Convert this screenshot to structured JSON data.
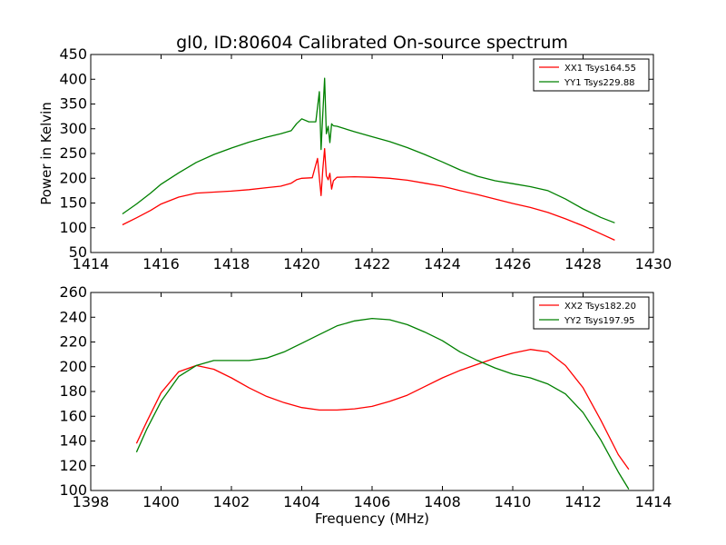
{
  "chart_data": [
    {
      "type": "line",
      "title": "gl0, ID:80604 Calibrated On-source spectrum",
      "xlabel": "",
      "ylabel": "Power in Kelvin",
      "xlim": [
        1414,
        1430
      ],
      "ylim": [
        50,
        450
      ],
      "xticks": [
        "1414",
        "1416",
        "1418",
        "1420",
        "1422",
        "1424",
        "1426",
        "1428",
        "1430"
      ],
      "yticks": [
        "50",
        "100",
        "150",
        "200",
        "250",
        "300",
        "350",
        "400",
        "450"
      ],
      "grid": false,
      "legend_position": "top-right",
      "series": [
        {
          "name": "XX1 Tsys164.55",
          "color": "#ff0000",
          "x": [
            1414.9,
            1415.3,
            1415.7,
            1416.0,
            1416.5,
            1417.0,
            1417.5,
            1418.0,
            1418.5,
            1419.0,
            1419.4,
            1419.7,
            1419.85,
            1420.0,
            1420.3,
            1420.45,
            1420.55,
            1420.6,
            1420.65,
            1420.7,
            1420.75,
            1420.8,
            1420.85,
            1420.9,
            1421.0,
            1421.5,
            1422.0,
            1422.5,
            1423.0,
            1423.5,
            1424.0,
            1424.5,
            1425.0,
            1425.5,
            1426.0,
            1426.5,
            1427.0,
            1427.5,
            1428.0,
            1428.5,
            1428.9
          ],
          "values": [
            106,
            120,
            135,
            148,
            162,
            170,
            172,
            174,
            177,
            181,
            184,
            190,
            197,
            200,
            201,
            240,
            165,
            218,
            260,
            205,
            197,
            210,
            178,
            195,
            202,
            203,
            202,
            200,
            196,
            190,
            184,
            175,
            167,
            158,
            149,
            141,
            131,
            118,
            104,
            88,
            75
          ]
        },
        {
          "name": "YY1 Tsys229.88",
          "color": "#008000",
          "x": [
            1414.9,
            1415.3,
            1415.7,
            1416.0,
            1416.5,
            1417.0,
            1417.5,
            1418.0,
            1418.5,
            1419.0,
            1419.4,
            1419.7,
            1419.85,
            1420.0,
            1420.2,
            1420.4,
            1420.5,
            1420.55,
            1420.6,
            1420.65,
            1420.7,
            1420.75,
            1420.8,
            1420.85,
            1420.9,
            1421.0,
            1421.5,
            1422.0,
            1422.5,
            1423.0,
            1423.5,
            1424.0,
            1424.5,
            1425.0,
            1425.5,
            1426.0,
            1426.5,
            1427.0,
            1427.5,
            1428.0,
            1428.5,
            1428.9
          ],
          "values": [
            128,
            148,
            170,
            188,
            211,
            232,
            248,
            261,
            273,
            283,
            290,
            296,
            310,
            320,
            314,
            314,
            375,
            258,
            330,
            402,
            290,
            305,
            272,
            310,
            306,
            305,
            294,
            284,
            274,
            262,
            248,
            233,
            217,
            204,
            195,
            189,
            183,
            175,
            158,
            138,
            121,
            110
          ]
        }
      ]
    },
    {
      "type": "line",
      "title": "",
      "xlabel": "Frequency (MHz)",
      "ylabel": "",
      "xlim": [
        1398,
        1414
      ],
      "ylim": [
        100,
        260
      ],
      "xticks": [
        "1398",
        "1400",
        "1402",
        "1404",
        "1406",
        "1408",
        "1410",
        "1412",
        "1414"
      ],
      "yticks": [
        "100",
        "120",
        "140",
        "160",
        "180",
        "200",
        "220",
        "240",
        "260"
      ],
      "grid": false,
      "legend_position": "top-right",
      "series": [
        {
          "name": "XX2 Tsys182.20",
          "color": "#ff0000",
          "x": [
            1399.3,
            1399.6,
            1400.0,
            1400.5,
            1401.0,
            1401.5,
            1402.0,
            1402.5,
            1403.0,
            1403.5,
            1404.0,
            1404.5,
            1405.0,
            1405.5,
            1406.0,
            1406.5,
            1407.0,
            1407.5,
            1408.0,
            1408.5,
            1409.0,
            1409.5,
            1410.0,
            1410.5,
            1411.0,
            1411.5,
            1412.0,
            1412.5,
            1413.0,
            1413.3
          ],
          "values": [
            138,
            156,
            179,
            196,
            201,
            198,
            191,
            183,
            176,
            171,
            167,
            165,
            165,
            166,
            168,
            172,
            177,
            184,
            191,
            197,
            202,
            207,
            211,
            214,
            212,
            201,
            183,
            157,
            129,
            117
          ]
        },
        {
          "name": "YY2 Tsys197.95",
          "color": "#008000",
          "x": [
            1399.3,
            1399.6,
            1400.0,
            1400.5,
            1401.0,
            1401.5,
            1402.0,
            1402.5,
            1403.0,
            1403.5,
            1404.0,
            1404.5,
            1405.0,
            1405.5,
            1406.0,
            1406.5,
            1407.0,
            1407.5,
            1408.0,
            1408.5,
            1409.0,
            1409.5,
            1410.0,
            1410.5,
            1411.0,
            1411.5,
            1412.0,
            1412.5,
            1413.0,
            1413.3
          ],
          "values": [
            131,
            150,
            172,
            192,
            201,
            205,
            205,
            205,
            207,
            212,
            219,
            226,
            233,
            237,
            239,
            238,
            234,
            228,
            221,
            212,
            205,
            199,
            194,
            191,
            186,
            178,
            163,
            141,
            115,
            101
          ]
        }
      ]
    }
  ]
}
